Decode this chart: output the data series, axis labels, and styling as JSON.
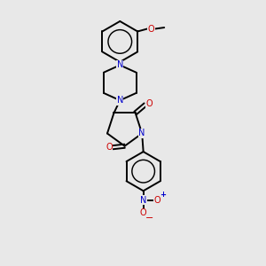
{
  "bg_color": "#e8e8e8",
  "bond_color": "#000000",
  "N_color": "#0000cc",
  "O_color": "#cc0000",
  "font_size_atom": 7.0,
  "line_width": 1.4,
  "fig_width": 3.0,
  "fig_height": 3.0,
  "dpi": 100,
  "xlim": [
    0,
    10
  ],
  "ylim": [
    0,
    10
  ]
}
